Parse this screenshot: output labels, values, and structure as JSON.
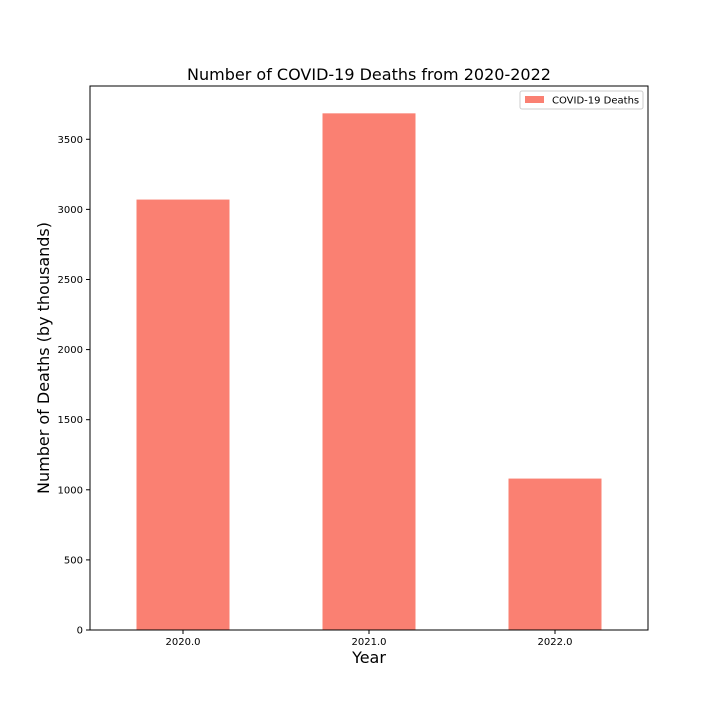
{
  "chart_data": {
    "type": "bar",
    "title": "Number of COVID-19 Deaths from 2020-2022",
    "xlabel": "Year",
    "ylabel": "Number of Deaths (by thousands)",
    "categories": [
      "2020.0",
      "2021.0",
      "2022.0"
    ],
    "series": [
      {
        "name": "COVID-19 Deaths",
        "values": [
          3070,
          3685,
          1080
        ]
      }
    ],
    "ylim": [
      0,
      3880
    ],
    "yticks": [
      0,
      500,
      1000,
      1500,
      2000,
      2500,
      3000,
      3500
    ],
    "grid": false,
    "legend": "top-right",
    "colors": {
      "bar": "#fa8072",
      "axis": "#000000",
      "legend_border": "#cccccc"
    }
  }
}
